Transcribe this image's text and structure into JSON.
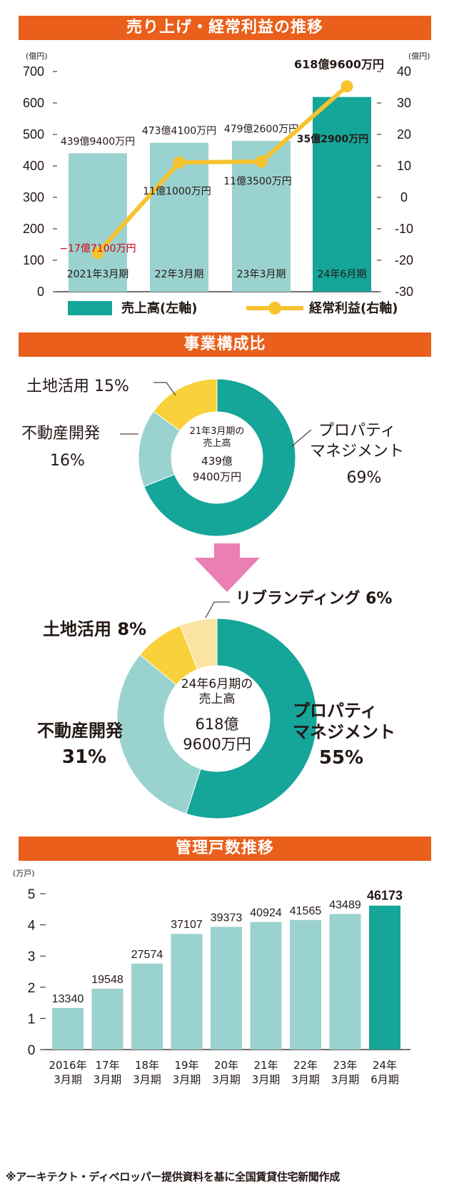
{
  "charts": {
    "sales": {
      "title": "売り上げ・経常利益の推移",
      "unit_left": "(億円)",
      "unit_right": "(億円)",
      "left_ticks": [
        "700",
        "600",
        "500",
        "400",
        "300",
        "200",
        "100",
        "0"
      ],
      "right_ticks": [
        "40",
        "30",
        "20",
        "10",
        "0",
        "-10",
        "-20",
        "-30"
      ],
      "legend_bar": "売上高(左軸)",
      "legend_line": "経常利益(右軸)"
    },
    "composition": {
      "title": "事業構成比",
      "arrow_icon": "down-arrow-icon"
    },
    "units": {
      "title": "管理戸数推移",
      "unit": "(万戸)",
      "ticks": [
        "5",
        "4",
        "3",
        "2",
        "1",
        "0"
      ]
    }
  },
  "footer": "※アーキテクト・ディベロッパー提供資料を基に全国賃貸住宅新聞作成",
  "chart_data": [
    {
      "type": "bar",
      "title": "売り上げ・経常利益の推移",
      "categories": [
        "2021年3月期",
        "22年3月期",
        "23年3月期",
        "24年6月期"
      ],
      "ylabel": "億円",
      "ylim": [
        0,
        700
      ],
      "y2lim": [
        -30,
        40
      ],
      "series": [
        {
          "name": "売上高(左軸)",
          "axis": "left",
          "kind": "bar",
          "values": [
            439.94,
            473.41,
            479.26,
            618.96
          ],
          "labels": [
            "439億9400万円",
            "473億4100万円",
            "479億2600万円",
            "618億9600万円"
          ],
          "colors": [
            "#9ad2cf",
            "#9ad2cf",
            "#9ad2cf",
            "#15a599"
          ]
        },
        {
          "name": "経常利益(右軸)",
          "axis": "right",
          "kind": "line",
          "values": [
            -17.71,
            11.1,
            11.35,
            35.29
          ],
          "labels": [
            "−17億7100万円",
            "11億1000万円",
            "11億3500万円",
            "35億2900万円"
          ],
          "color": "#f6c32f"
        }
      ]
    },
    {
      "type": "pie",
      "title": "事業構成比",
      "center_lines": [
        "21年3月期の",
        "売上高",
        "439億",
        "9400万円"
      ],
      "labels": [
        "プロパティマネジメント",
        "不動産開発",
        "土地活用"
      ],
      "values": [
        69,
        16,
        15
      ],
      "colors": [
        "#15a599",
        "#9ad2cf",
        "#f9d13a"
      ]
    },
    {
      "type": "pie",
      "title": "事業構成比",
      "center_lines": [
        "24年6月期の",
        "売上高",
        "618億",
        "9600万円"
      ],
      "labels": [
        "プロパティマネジメント",
        "不動産開発",
        "土地活用",
        "リブランディング"
      ],
      "values": [
        55,
        31,
        8,
        6
      ],
      "colors": [
        "#15a599",
        "#9ad2cf",
        "#f9d13a",
        "#fbe3a4"
      ]
    },
    {
      "type": "bar",
      "title": "管理戸数推移",
      "ylabel": "万戸",
      "ylim": [
        0,
        5
      ],
      "categories": [
        "2016年3月期",
        "17年3月期",
        "18年3月期",
        "19年3月期",
        "20年3月期",
        "21年3月期",
        "22年3月期",
        "23年3月期",
        "24年6月期"
      ],
      "category_lines": [
        [
          "2016年",
          "3月期"
        ],
        [
          "17年",
          "3月期"
        ],
        [
          "18年",
          "3月期"
        ],
        [
          "19年",
          "3月期"
        ],
        [
          "20年",
          "3月期"
        ],
        [
          "21年",
          "3月期"
        ],
        [
          "22年",
          "3月期"
        ],
        [
          "23年",
          "3月期"
        ],
        [
          "24年",
          "6月期"
        ]
      ],
      "values": [
        13340,
        19548,
        27574,
        37107,
        39373,
        40924,
        41565,
        43489,
        46173
      ],
      "colors": [
        "#9ad2cf",
        "#9ad2cf",
        "#9ad2cf",
        "#9ad2cf",
        "#9ad2cf",
        "#9ad2cf",
        "#9ad2cf",
        "#9ad2cf",
        "#15a599"
      ]
    }
  ]
}
